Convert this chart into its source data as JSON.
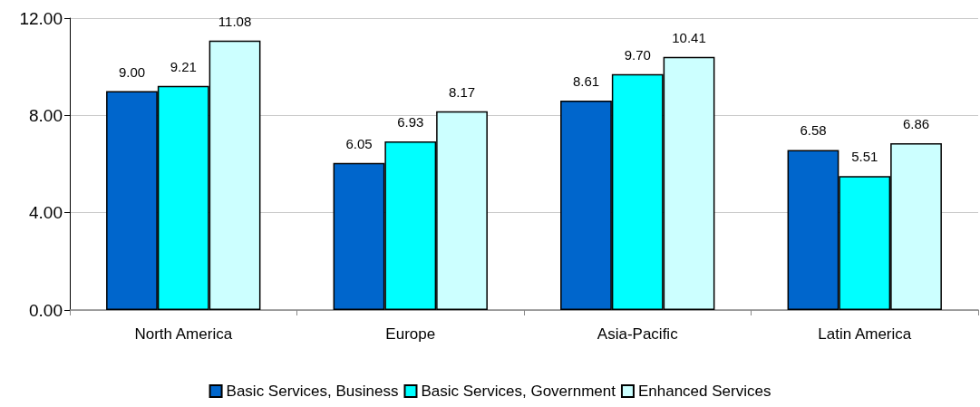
{
  "chart_data": {
    "type": "bar",
    "categories": [
      "North America",
      "Europe",
      "Asia-Pacific",
      "Latin America"
    ],
    "series": [
      {
        "name": "Basic Services, Business",
        "color": "#0066cc",
        "values": [
          9.0,
          6.05,
          8.61,
          6.58
        ],
        "value_labels": [
          "9.00",
          "6.05",
          "8.61",
          "6.58"
        ]
      },
      {
        "name": "Basic Services, Government",
        "color": "#00ffff",
        "values": [
          9.21,
          6.93,
          9.7,
          5.51
        ],
        "value_labels": [
          "9.21",
          "6.93",
          "9.70",
          "5.51"
        ]
      },
      {
        "name": "Enhanced Services",
        "color": "#ccffff",
        "values": [
          11.08,
          8.17,
          10.41,
          6.86
        ],
        "value_labels": [
          "11.08",
          "8.17",
          "10.41",
          "6.86"
        ]
      }
    ],
    "ylim": [
      0,
      12
    ],
    "yticks": [
      {
        "value": 0,
        "label": "0.00"
      },
      {
        "value": 4,
        "label": "4.00"
      },
      {
        "value": 8,
        "label": "8.00"
      },
      {
        "value": 12,
        "label": "12.00"
      }
    ],
    "grid": "y",
    "legend": "bottom"
  }
}
